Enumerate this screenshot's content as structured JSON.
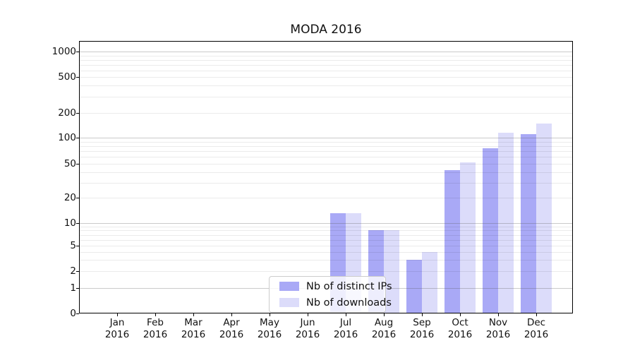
{
  "chart_data": {
    "type": "bar",
    "title": "MODA 2016",
    "categories": [
      "Jan",
      "Feb",
      "Mar",
      "Apr",
      "May",
      "Jun",
      "Jul",
      "Aug",
      "Sep",
      "Oct",
      "Nov",
      "Dec"
    ],
    "category_year_line": "2016",
    "series": [
      {
        "name": "Nb of distinct IPs",
        "color": "#a9a9f6",
        "values": [
          0,
          0,
          0,
          0,
          0,
          0,
          13,
          8,
          3,
          42,
          75,
          110
        ]
      },
      {
        "name": "Nb of downloads",
        "color": "#dcdcfa",
        "values": [
          0,
          0,
          0,
          0,
          0,
          0,
          13,
          8,
          4,
          52,
          115,
          150
        ]
      }
    ],
    "y_axis": {
      "scale": "symlog",
      "tick_labels": [
        0,
        1,
        2,
        5,
        10,
        20,
        50,
        100,
        200,
        500,
        1000
      ],
      "major_gridlines_at": [
        1,
        10,
        100,
        1000
      ],
      "minor_gridlines": "2-9 per decade",
      "range": [
        0,
        1300
      ]
    },
    "x_axis": {
      "label_format": "month over year, two lines"
    },
    "grid": true,
    "legend": {
      "position": "inside plot, lower center-left"
    }
  }
}
